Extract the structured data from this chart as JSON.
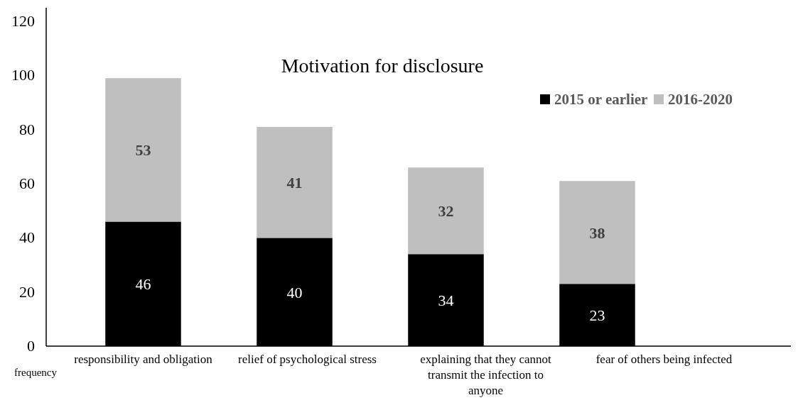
{
  "chart_data": {
    "type": "bar",
    "title": "Motivation for disclosure",
    "ylabel": "frequency",
    "categories": [
      "responsibility and obligation",
      "relief of psychological stress",
      "explaining that they cannot transmit the infection to anyone",
      "fear of others being infected"
    ],
    "series": [
      {
        "name": "2015 or earlier",
        "color": "#000000",
        "values": [
          46,
          40,
          34,
          23
        ]
      },
      {
        "name": "2016-2020",
        "color": "#bfbfbf",
        "values": [
          53,
          41,
          32,
          38
        ]
      }
    ],
    "stacked": true,
    "data_labels": true,
    "legend": "top right",
    "grid": false,
    "ylim": [
      0,
      125
    ],
    "yticks": [
      0,
      20,
      40,
      60,
      80,
      100,
      120
    ]
  }
}
